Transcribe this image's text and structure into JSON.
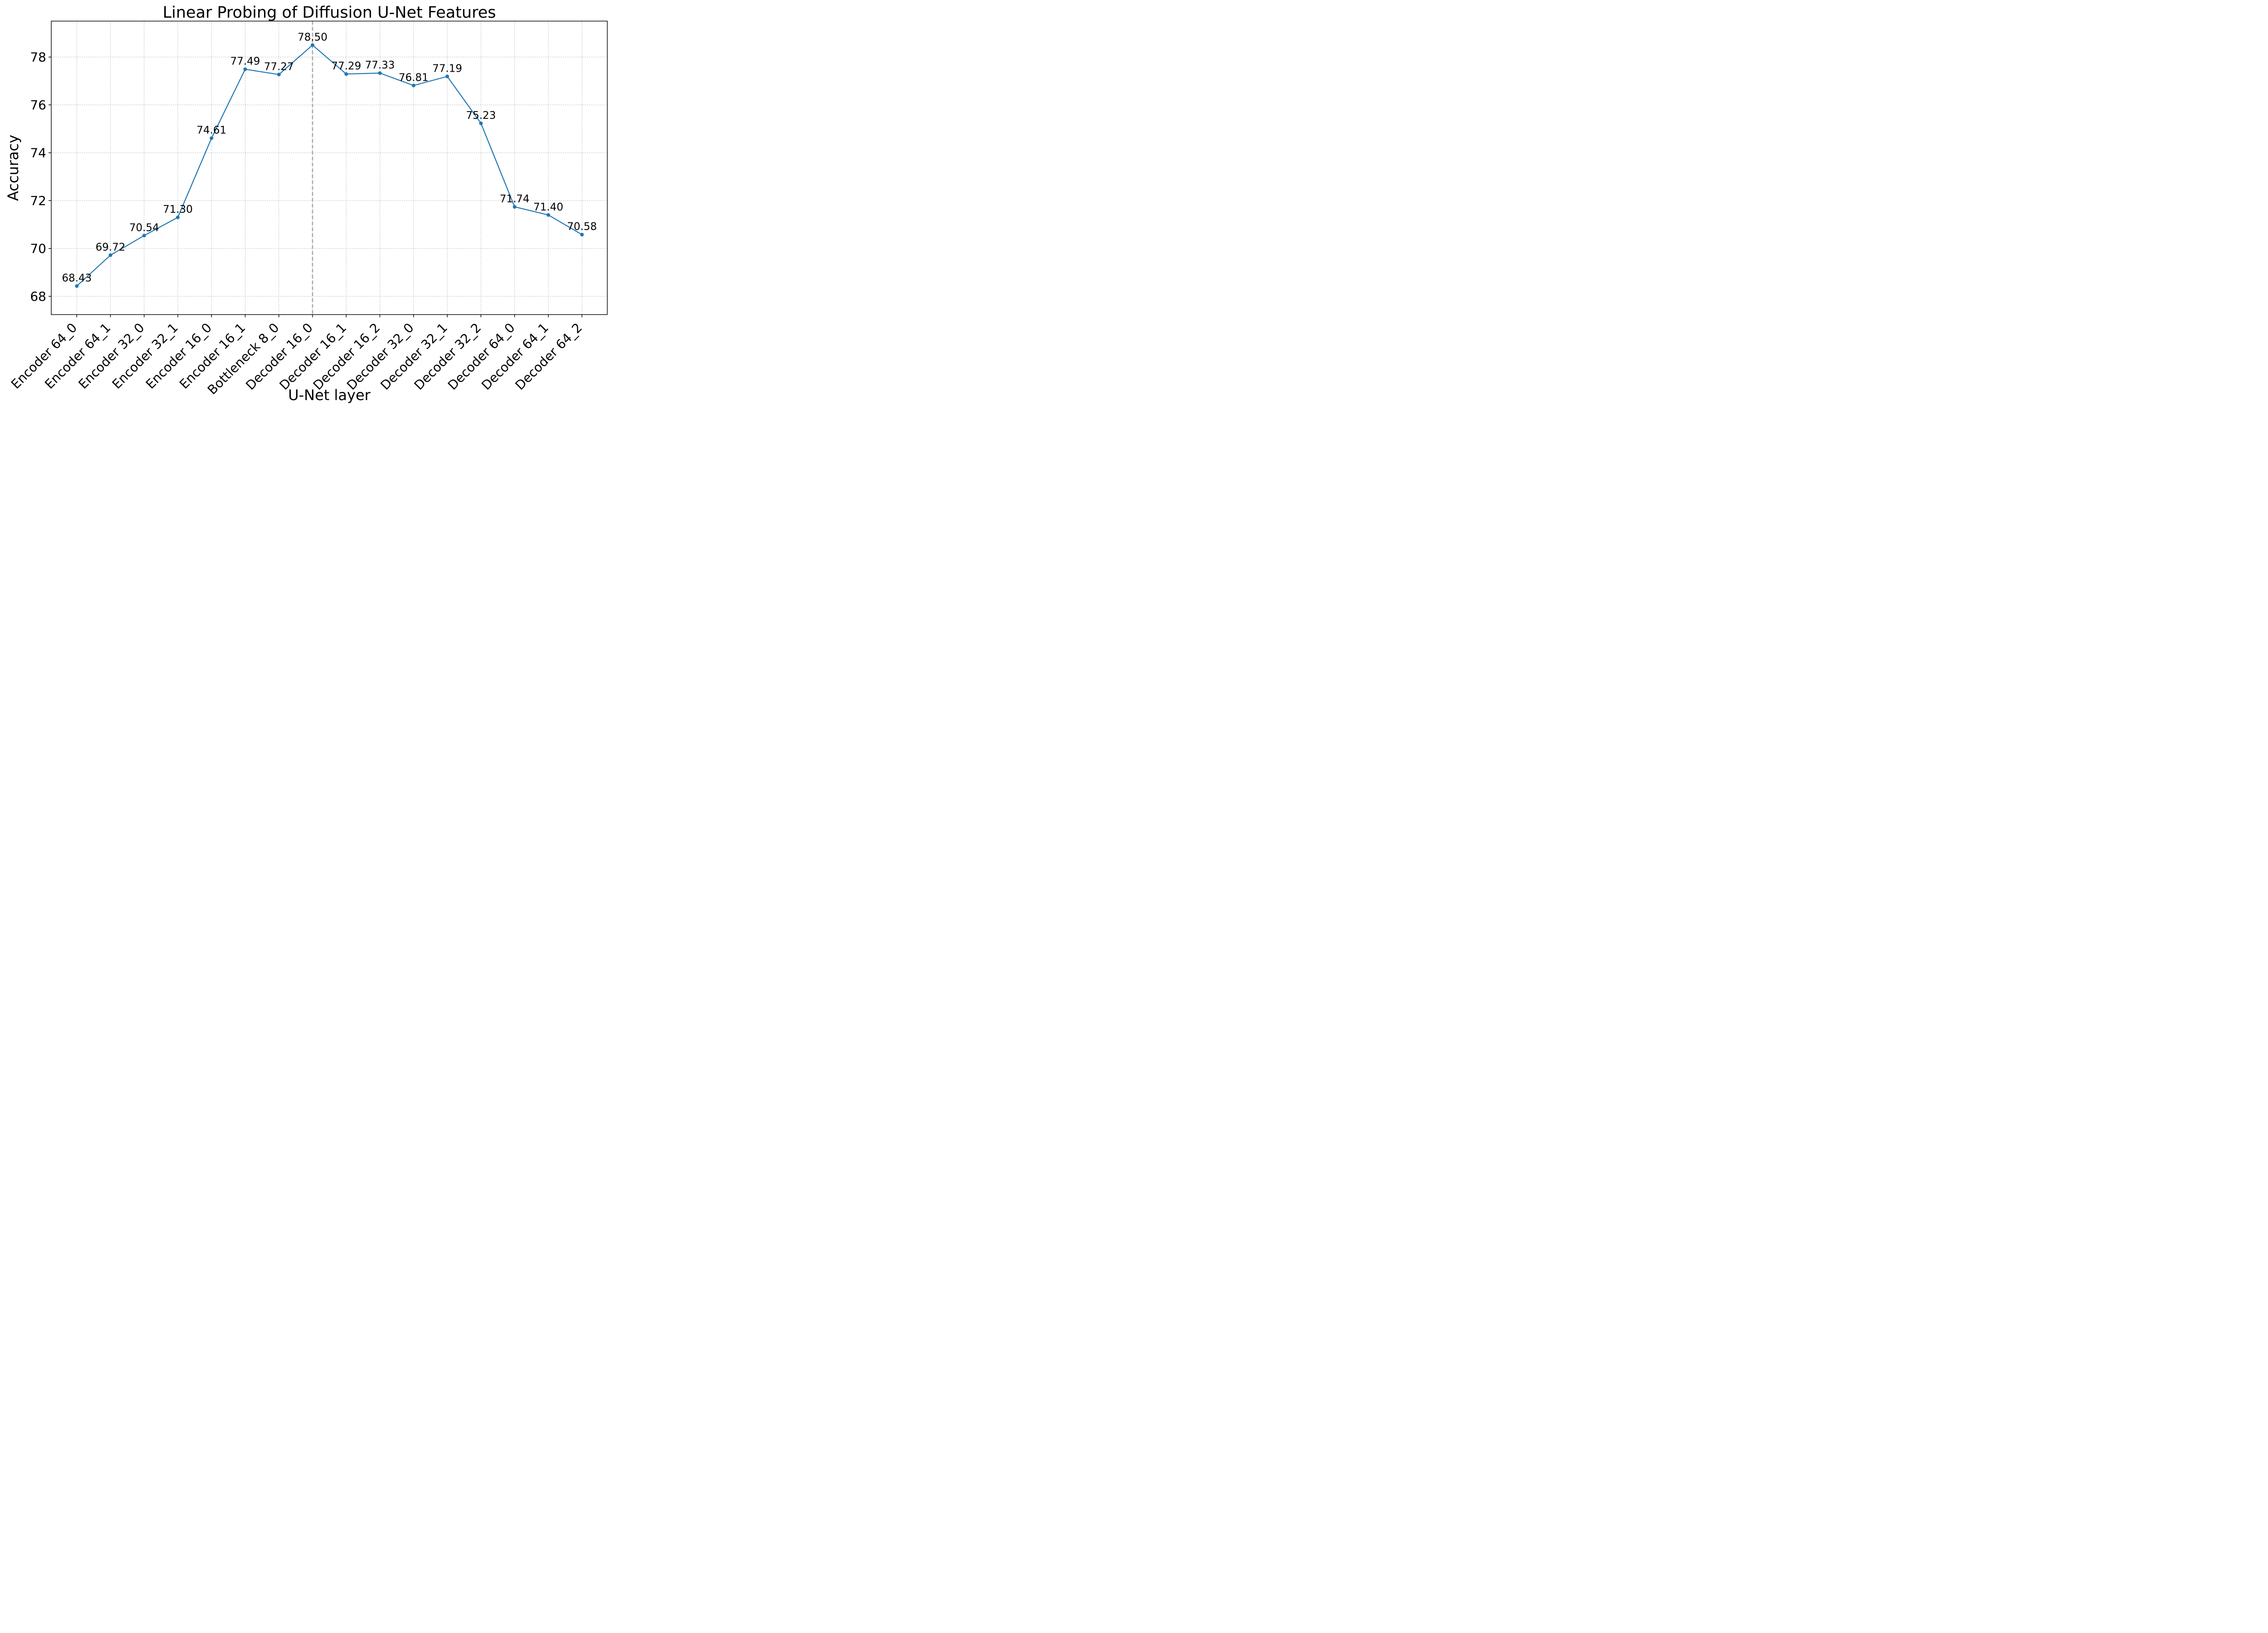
{
  "chart_data": {
    "type": "line",
    "title": "Linear Probing of Diffusion U-Net Features",
    "xlabel": "U-Net layer",
    "ylabel": "Accuracy",
    "categories": [
      "Encoder 64_0",
      "Encoder 64_1",
      "Encoder 32_0",
      "Encoder 32_1",
      "Encoder 16_0",
      "Encoder 16_1",
      "Bottleneck 8_0",
      "Decoder 16_0",
      "Decoder 16_1",
      "Decoder 16_2",
      "Decoder 32_0",
      "Decoder 32_1",
      "Decoder 32_2",
      "Decoder 64_0",
      "Decoder 64_1",
      "Decoder 64_2"
    ],
    "values": [
      68.43,
      69.72,
      70.54,
      71.3,
      74.61,
      77.49,
      77.27,
      78.5,
      77.29,
      77.33,
      76.81,
      77.19,
      75.23,
      71.74,
      71.4,
      70.58
    ],
    "point_labels": [
      "68.43",
      "69.72",
      "70.54",
      "71.30",
      "74.61",
      "77.49",
      "77.27",
      "78.50",
      "77.29",
      "77.33",
      "76.81",
      "77.19",
      "75.23",
      "71.74",
      "71.40",
      "70.58"
    ],
    "yticks": [
      68,
      70,
      72,
      74,
      76,
      78
    ],
    "ylim": [
      67.2,
      79.5
    ],
    "grid": true,
    "grid_style": "dashed",
    "legend_position": "none",
    "vline": {
      "at_category": "Decoder 16_0",
      "index": 7,
      "style": "dashed",
      "color": "#a8a8a8"
    },
    "colors": {
      "line": "#1f77b4",
      "marker": "#1f77b4",
      "grid": "#bdbdbd",
      "axis": "#000000",
      "text": "#000000",
      "background": "#ffffff"
    }
  }
}
